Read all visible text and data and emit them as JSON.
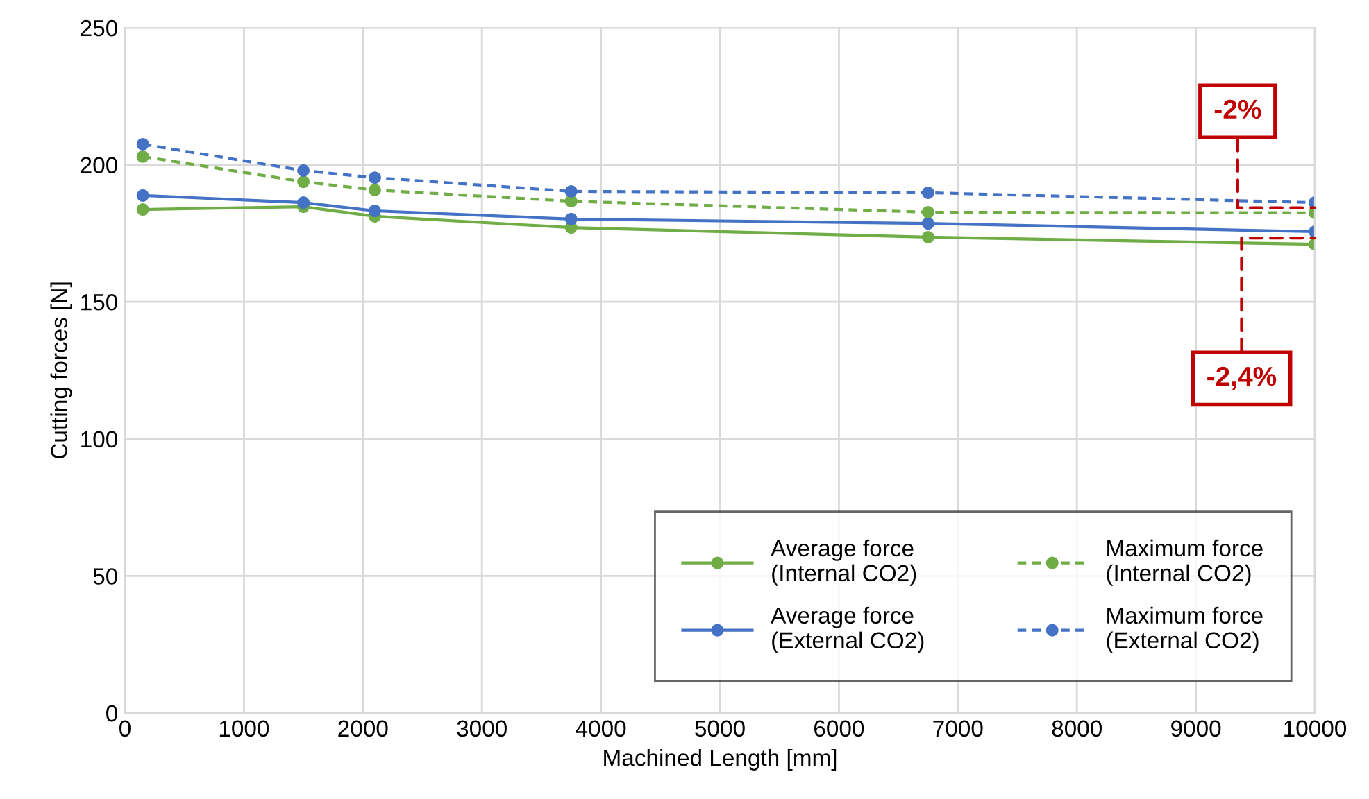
{
  "chart_data": {
    "type": "line",
    "xlabel": "Machined Length [mm]",
    "ylabel": "Cutting forces [N]",
    "x": [
      150,
      1500,
      2100,
      3750,
      6750,
      10000
    ],
    "series": [
      {
        "name": "Average force\n(Internal CO2)",
        "color": "#70ad47",
        "line_style": "solid",
        "values": [
          183.7,
          184.7,
          181.2,
          177.1,
          173.6,
          171.0
        ]
      },
      {
        "name": "Average force\n(External CO2)",
        "color": "#4472c4",
        "line_style": "solid",
        "values": [
          188.8,
          186.2,
          183.2,
          180.2,
          178.6,
          175.6
        ]
      },
      {
        "name": "Maximum force\n(Internal CO2)",
        "color": "#70ad47",
        "line_style": "dashed",
        "values": [
          203.0,
          193.8,
          190.8,
          186.7,
          182.7,
          182.5
        ]
      },
      {
        "name": "Maximum force\n(External CO2)",
        "color": "#4472c4",
        "line_style": "dashed",
        "values": [
          207.5,
          197.9,
          195.3,
          190.3,
          189.8,
          186.2
        ]
      }
    ],
    "xlim": [
      0,
      10000
    ],
    "xticks": [
      0,
      1000,
      2000,
      3000,
      4000,
      5000,
      6000,
      7000,
      8000,
      9000,
      10000
    ],
    "ylim": [
      0,
      250
    ],
    "yticks": [
      0,
      50,
      100,
      150,
      200,
      250
    ],
    "grid": true,
    "legend": "bottom right",
    "marker": "circle",
    "annotations": [
      {
        "text": "-2%",
        "x": 10000,
        "y": 184.3
      },
      {
        "text": "-2,4%",
        "x": 10000,
        "y": 173.3
      }
    ]
  }
}
